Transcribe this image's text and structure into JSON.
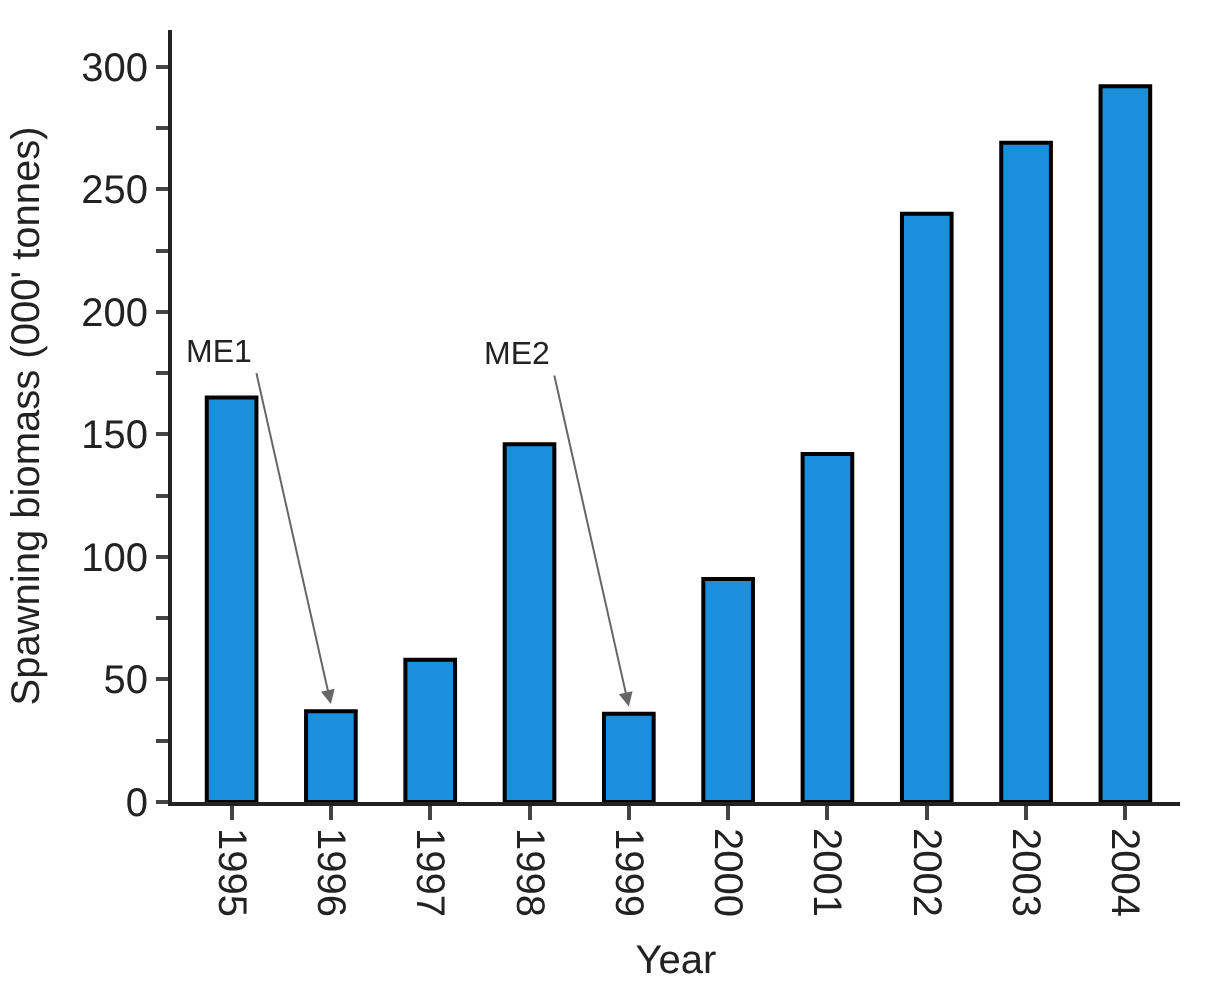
{
  "chart_data": {
    "type": "bar",
    "xlabel": "Year",
    "ylabel": "Spawning biomass (000' tonnes)",
    "categories": [
      "1995",
      "1996",
      "1997",
      "1998",
      "1999",
      "2000",
      "2001",
      "2002",
      "2003",
      "2004"
    ],
    "values": [
      165,
      37,
      58,
      146,
      36,
      91,
      142,
      240,
      269,
      292
    ],
    "color": "#1a8fdc",
    "ylim": [
      0,
      315
    ],
    "yticks": [
      0,
      {
        "value": 25,
        "label": null
      },
      50,
      {
        "value": 75,
        "label": null
      },
      100,
      {
        "value": 125,
        "label": null
      },
      150,
      {
        "value": 175,
        "label": null
      },
      200,
      {
        "value": 225,
        "label": null
      },
      250,
      {
        "value": 275,
        "label": null
      },
      300
    ],
    "annotations": [
      {
        "text": "ME1",
        "x": "1996",
        "y": 40
      },
      {
        "text": "ME2",
        "x": "1999",
        "y": 39
      }
    ]
  }
}
